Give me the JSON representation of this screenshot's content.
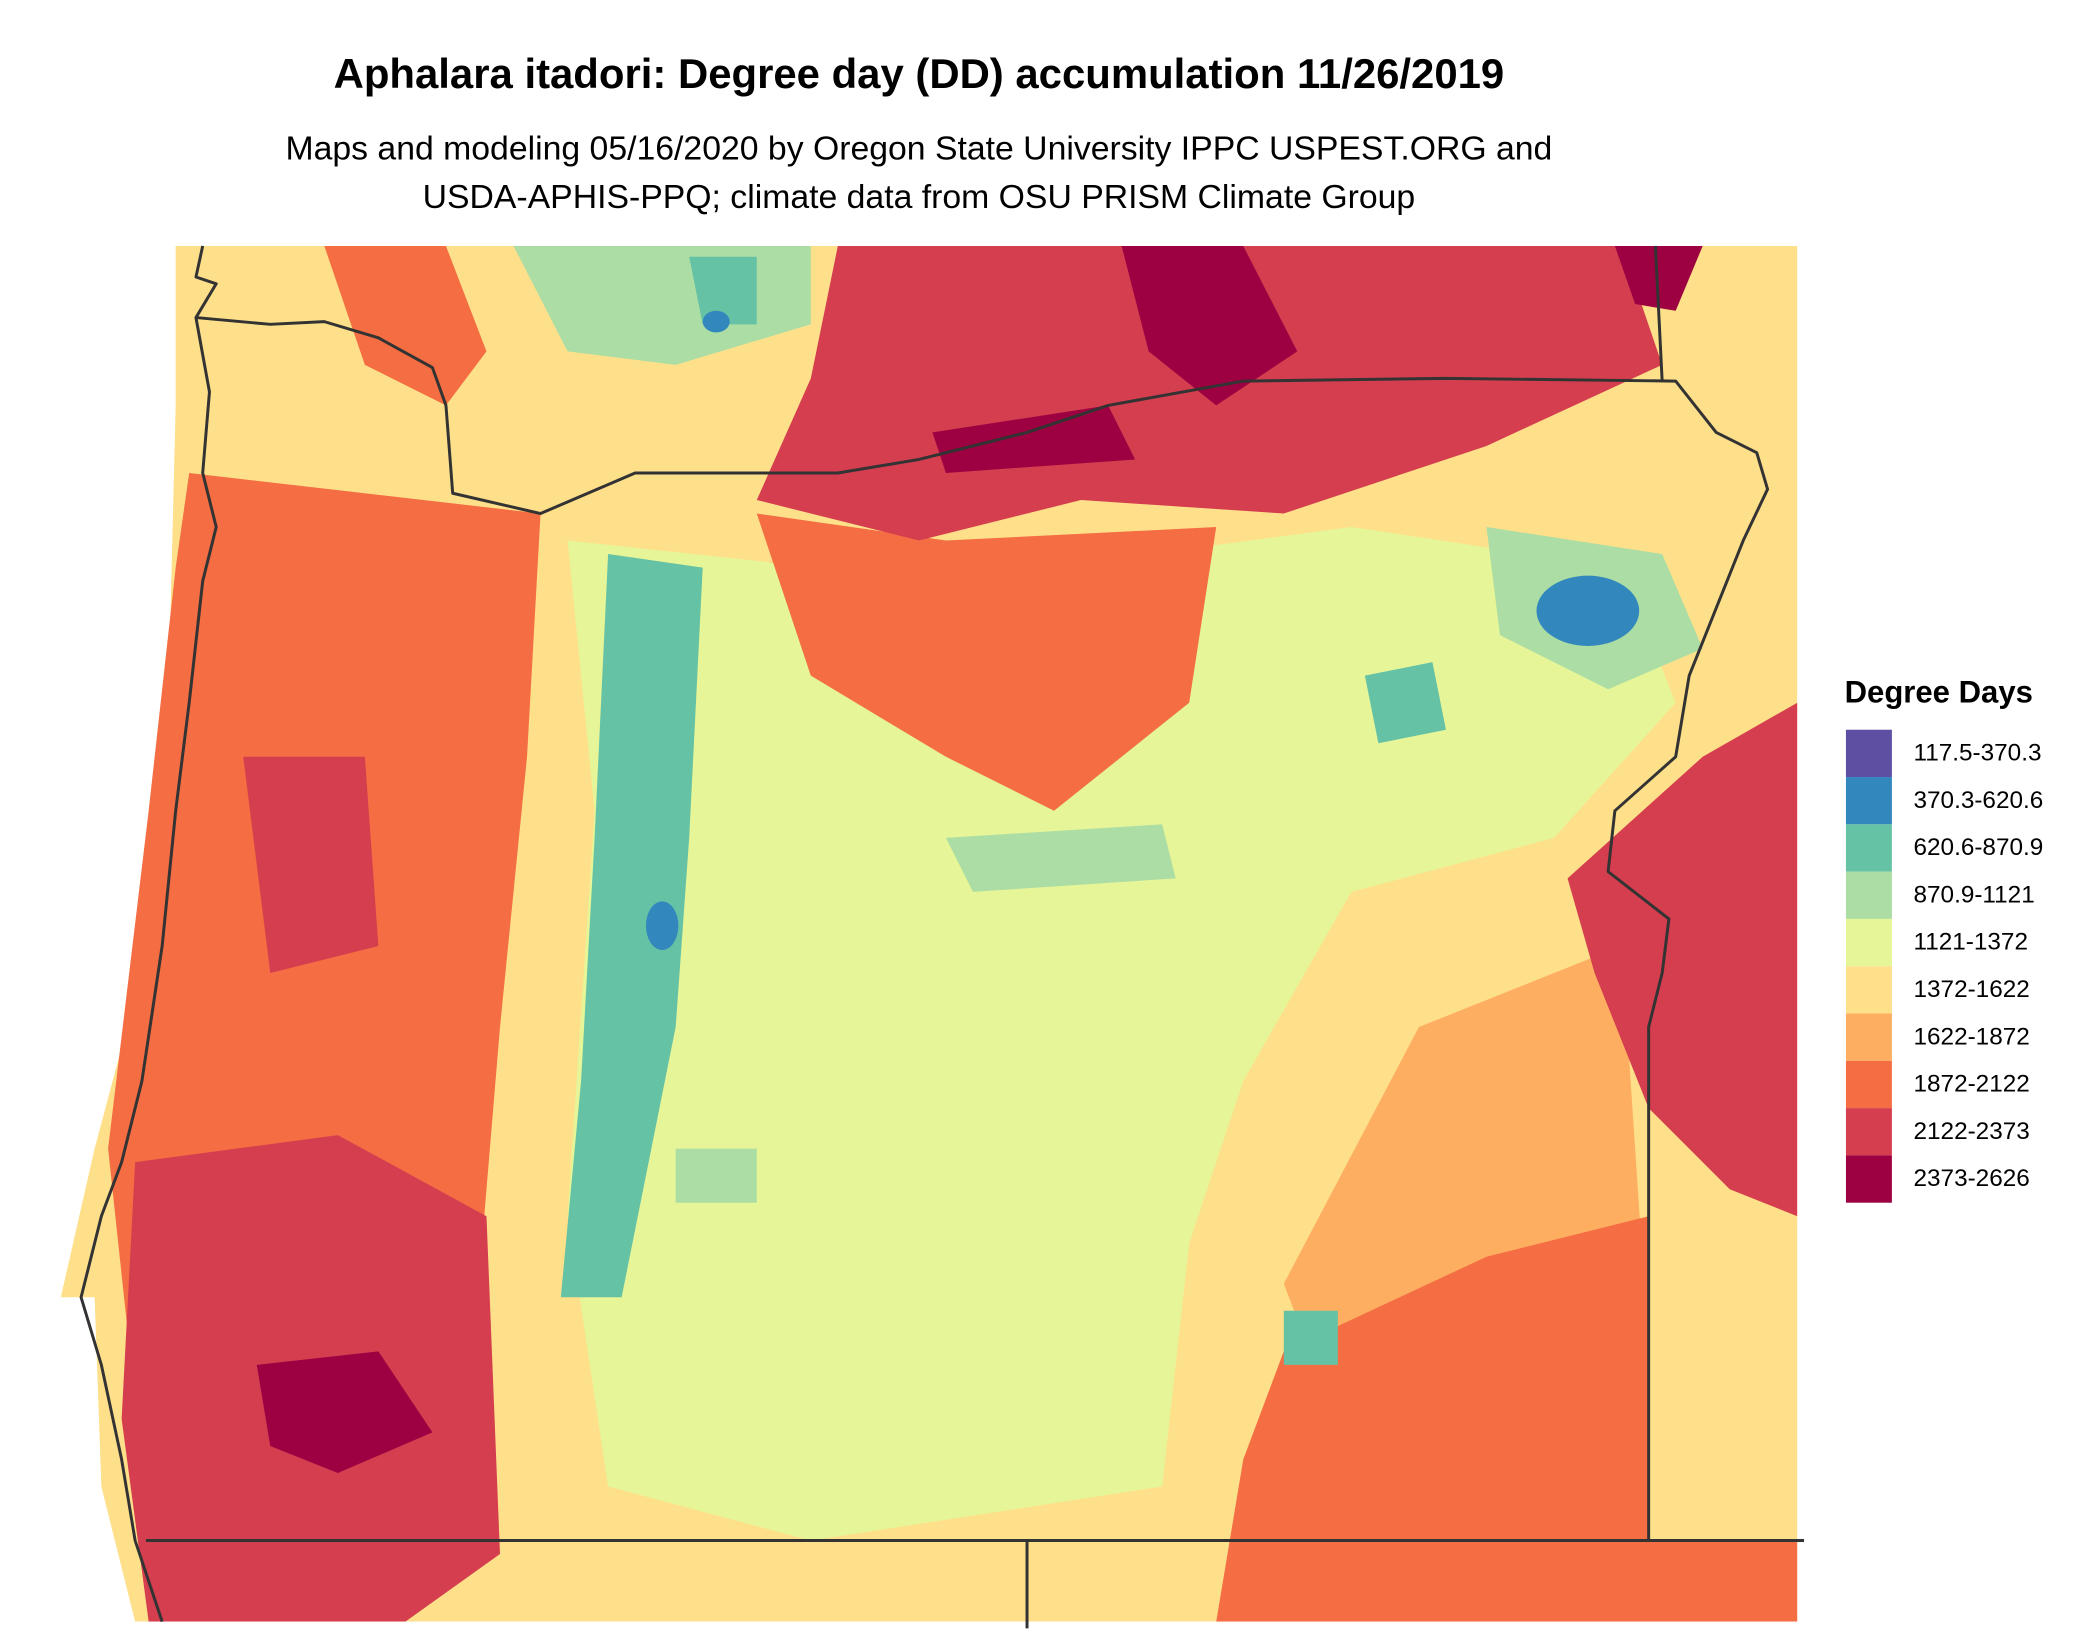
{
  "title": "Aphalara itadori: Degree day (DD) accumulation 11/26/2019",
  "subtitle": [
    "Maps and modeling 05/16/2020 by Oregon State University IPPC USPEST.ORG and",
    "USDA-APHIS-PPQ; climate data from OSU PRISM Climate Group"
  ],
  "legend": {
    "title": "Degree Days",
    "items": [
      {
        "label": "117.5-370.3",
        "color": "#5e4fa2"
      },
      {
        "label": "370.3-620.6",
        "color": "#3288bd"
      },
      {
        "label": "620.6-870.9",
        "color": "#66c2a5"
      },
      {
        "label": "870.9-1121",
        "color": "#abdda4"
      },
      {
        "label": "1121-1372",
        "color": "#e6f598"
      },
      {
        "label": "1372-1622",
        "color": "#fee08b"
      },
      {
        "label": "1622-1872",
        "color": "#fdae61"
      },
      {
        "label": "1872-2122",
        "color": "#f46d43"
      },
      {
        "label": "2122-2373",
        "color": "#d53e4f"
      },
      {
        "label": "2373-2626",
        "color": "#9e0142"
      }
    ]
  }
}
